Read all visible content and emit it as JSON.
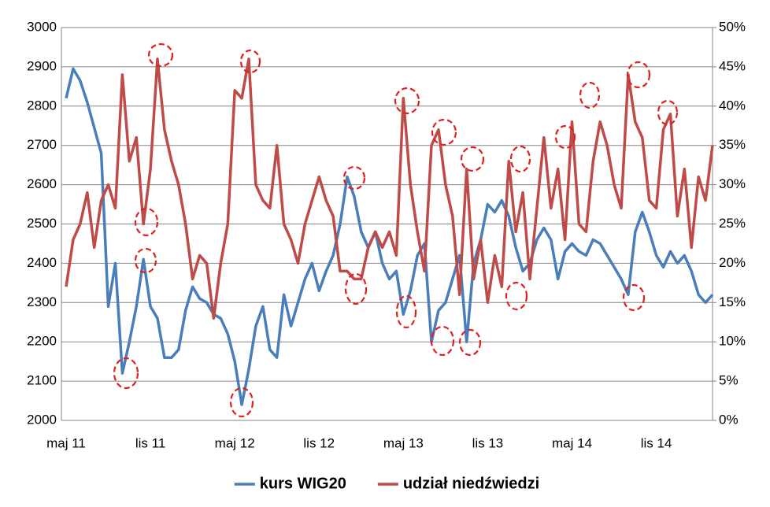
{
  "chart_data": {
    "type": "line",
    "categories": [
      "maj 11",
      null,
      null,
      null,
      null,
      null,
      null,
      null,
      null,
      null,
      null,
      null,
      "lis 11",
      null,
      null,
      null,
      null,
      null,
      null,
      null,
      null,
      null,
      null,
      null,
      "maj 12",
      null,
      null,
      null,
      null,
      null,
      null,
      null,
      null,
      null,
      null,
      null,
      "lis 12",
      null,
      null,
      null,
      null,
      null,
      null,
      null,
      null,
      null,
      null,
      null,
      "maj 13",
      null,
      null,
      null,
      null,
      null,
      null,
      null,
      null,
      null,
      null,
      null,
      "lis 13",
      null,
      null,
      null,
      null,
      null,
      null,
      null,
      null,
      null,
      null,
      null,
      "maj 14",
      null,
      null,
      null,
      null,
      null,
      null,
      null,
      null,
      null,
      null,
      null,
      "lis 14",
      null,
      null,
      null,
      null,
      null,
      null,
      null,
      null
    ],
    "series": [
      {
        "name": "kurs WIG20",
        "color": "#4a7ebb",
        "values": [
          2820,
          2895,
          2865,
          2810,
          2745,
          2680,
          2290,
          2400,
          2120,
          2200,
          2290,
          2410,
          2290,
          2260,
          2160,
          2160,
          2180,
          2280,
          2340,
          2310,
          2300,
          2270,
          2260,
          2220,
          2150,
          2040,
          2130,
          2240,
          2290,
          2180,
          2160,
          2320,
          2240,
          2300,
          2360,
          2400,
          2330,
          2380,
          2420,
          2500,
          2620,
          2570,
          2480,
          2440,
          2480,
          2400,
          2360,
          2380,
          2270,
          2330,
          2420,
          2450,
          2200,
          2280,
          2300,
          2360,
          2420,
          2200,
          2400,
          2460,
          2550,
          2530,
          2560,
          2520,
          2440,
          2380,
          2400,
          2460,
          2490,
          2460,
          2360,
          2430,
          2450,
          2430,
          2420,
          2460,
          2450,
          2420,
          2390,
          2360,
          2320,
          2480,
          2530,
          2480,
          2420,
          2390,
          2430,
          2400,
          2420,
          2380,
          2320,
          2300,
          2320
        ]
      },
      {
        "name": "udział niedźwiedzi",
        "color": "#be4b48",
        "axis": "y2",
        "values": [
          17,
          23,
          25,
          29,
          22,
          28,
          30,
          27,
          44,
          33,
          36,
          25,
          32,
          46,
          37,
          33,
          30,
          25,
          18,
          21,
          20,
          13,
          20,
          25,
          42,
          41,
          46,
          30,
          28,
          27,
          35,
          25,
          23,
          20,
          25,
          28,
          31,
          28,
          26,
          19,
          19,
          18,
          18,
          22,
          24,
          22,
          24,
          21,
          41,
          30,
          24,
          19,
          35,
          37,
          30,
          26,
          16,
          32,
          18,
          23,
          15,
          21,
          17,
          33,
          24,
          29,
          18,
          27,
          36,
          27,
          32,
          23,
          38,
          25,
          24,
          33,
          38,
          35,
          30,
          27,
          44,
          38,
          36,
          28,
          27,
          37,
          39,
          26,
          32,
          22,
          31,
          28,
          35
        ]
      }
    ],
    "ylim": [
      2000,
      3000
    ],
    "yticks": [
      2000,
      2100,
      2200,
      2300,
      2400,
      2500,
      2600,
      2700,
      2800,
      2900,
      3000
    ],
    "y2lim": [
      0,
      50
    ],
    "y2ticks": [
      {
        "value": 0,
        "label": "0%"
      },
      {
        "value": 5,
        "label": "5%"
      },
      {
        "value": 10,
        "label": "10%"
      },
      {
        "value": 15,
        "label": "15%"
      },
      {
        "value": 20,
        "label": "20%"
      },
      {
        "value": 25,
        "label": "25%"
      },
      {
        "value": 30,
        "label": "30%"
      },
      {
        "value": 35,
        "label": "35%"
      },
      {
        "value": 40,
        "label": "40%"
      },
      {
        "value": 45,
        "label": "45%"
      },
      {
        "value": 50,
        "label": "50%"
      }
    ],
    "grid": true,
    "legend": "bottom"
  }
}
